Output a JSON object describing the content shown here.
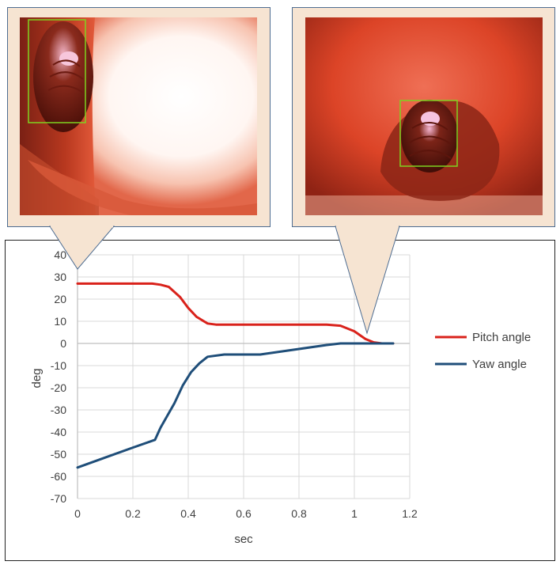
{
  "colors": {
    "pitch": "#d9221b",
    "yaw": "#1f4e79",
    "panel_fill": "#f6e4d2",
    "panel_border": "#4e6d92",
    "roi_box": "#7ed321"
  },
  "chart_data": {
    "type": "line",
    "title": "",
    "xlabel": "sec",
    "ylabel": "deg",
    "xlim": [
      0,
      1.2
    ],
    "ylim": [
      -70,
      40
    ],
    "x_ticks": [
      "0",
      "0.2",
      "0.4",
      "0.6",
      "0.8",
      "1",
      "1.2"
    ],
    "y_ticks": [
      "40",
      "30",
      "20",
      "10",
      "0",
      "-10",
      "-20",
      "-30",
      "-40",
      "-50",
      "-60",
      "-70"
    ],
    "grid": true,
    "legend_position": "right",
    "series": [
      {
        "name": "Pitch angle",
        "color": "#d9221b",
        "x": [
          0,
          0.1,
          0.2,
          0.27,
          0.3,
          0.33,
          0.37,
          0.4,
          0.43,
          0.47,
          0.5,
          0.6,
          0.7,
          0.8,
          0.9,
          0.95,
          1.0,
          1.04,
          1.07,
          1.1,
          1.14
        ],
        "y": [
          27,
          27,
          27,
          27,
          26.5,
          25.5,
          21,
          16,
          12,
          9,
          8.5,
          8.5,
          8.5,
          8.5,
          8.5,
          8,
          5.5,
          2,
          0.5,
          0,
          0
        ]
      },
      {
        "name": "Yaw angle",
        "color": "#1f4e79",
        "x": [
          0,
          0.1,
          0.2,
          0.28,
          0.3,
          0.35,
          0.38,
          0.41,
          0.44,
          0.47,
          0.53,
          0.66,
          0.8,
          0.9,
          0.95,
          1.0,
          1.05,
          1.1,
          1.14
        ],
        "y": [
          -56,
          -51.5,
          -47,
          -43.5,
          -38,
          -27,
          -19,
          -13,
          -9,
          -6,
          -5,
          -5,
          -2.5,
          -0.7,
          0,
          0,
          0,
          0,
          0
        ]
      }
    ]
  },
  "images": [
    {
      "name": "endoscope-frame-start",
      "roi": "green-box"
    },
    {
      "name": "endoscope-frame-end",
      "roi": "green-box"
    }
  ]
}
